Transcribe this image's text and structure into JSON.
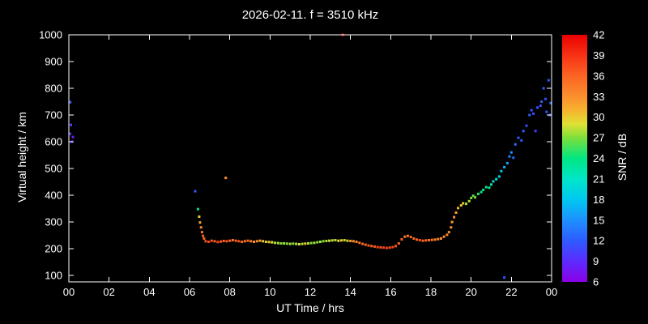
{
  "chart_data": {
    "type": "scatter",
    "title": "2026-02-11. f = 3510 kHz",
    "xlabel": "UT Time / hrs",
    "ylabel": "Virtual height / km",
    "colorbar_label": "SNR / dB",
    "background": "#000000",
    "foreground": "#ffffff",
    "xlim": [
      0,
      24
    ],
    "ylim": [
      76,
      1000
    ],
    "snr_lim": [
      6,
      42
    ],
    "x_ticks": {
      "values": [
        0,
        2,
        4,
        6,
        8,
        10,
        12,
        14,
        16,
        18,
        20,
        22,
        24
      ],
      "labels": [
        "00",
        "02",
        "04",
        "06",
        "08",
        "10",
        "12",
        "14",
        "16",
        "18",
        "20",
        "22",
        "00"
      ]
    },
    "y_ticks": [
      100,
      200,
      300,
      400,
      500,
      600,
      700,
      800,
      900,
      1000
    ],
    "colorbar_ticks": [
      6,
      9,
      12,
      15,
      18,
      21,
      24,
      27,
      30,
      33,
      36,
      39,
      42
    ],
    "colormap_stops": [
      {
        "v": 6,
        "c": "#8a00e6"
      },
      {
        "v": 9,
        "c": "#5c2bff"
      },
      {
        "v": 12,
        "c": "#2e5bff"
      },
      {
        "v": 15,
        "c": "#1e90ff"
      },
      {
        "v": 18,
        "c": "#00c8f0"
      },
      {
        "v": 21,
        "c": "#00e6c8"
      },
      {
        "v": 24,
        "c": "#00e682"
      },
      {
        "v": 27,
        "c": "#7ddf3a"
      },
      {
        "v": 29,
        "c": "#dfe135"
      },
      {
        "v": 31,
        "c": "#f7b32e"
      },
      {
        "v": 33,
        "c": "#fb8f2d"
      },
      {
        "v": 36,
        "c": "#fb6524"
      },
      {
        "v": 39,
        "c": "#f73214"
      },
      {
        "v": 42,
        "c": "#eb0000"
      }
    ],
    "points": [
      [
        0.07,
        748,
        12
      ],
      [
        0.1,
        663,
        10
      ],
      [
        0.06,
        630,
        10
      ],
      [
        0.2,
        618,
        8
      ],
      [
        0.15,
        600,
        9
      ],
      [
        6.28,
        415,
        12
      ],
      [
        6.42,
        348,
        24
      ],
      [
        6.48,
        320,
        30
      ],
      [
        6.52,
        298,
        32
      ],
      [
        6.57,
        280,
        34
      ],
      [
        6.62,
        262,
        35
      ],
      [
        6.67,
        248,
        36
      ],
      [
        6.72,
        238,
        36
      ],
      [
        6.8,
        228,
        37
      ],
      [
        6.95,
        226,
        38
      ],
      [
        7.1,
        230,
        37
      ],
      [
        7.25,
        228,
        36
      ],
      [
        7.4,
        225,
        38
      ],
      [
        7.55,
        227,
        37
      ],
      [
        7.7,
        229,
        36
      ],
      [
        7.85,
        228,
        37
      ],
      [
        8.0,
        230,
        36
      ],
      [
        8.15,
        232,
        35
      ],
      [
        8.3,
        230,
        36
      ],
      [
        8.45,
        228,
        37
      ],
      [
        8.6,
        226,
        36
      ],
      [
        8.75,
        228,
        35
      ],
      [
        8.9,
        230,
        36
      ],
      [
        9.05,
        228,
        34
      ],
      [
        9.2,
        226,
        33
      ],
      [
        9.35,
        228,
        33
      ],
      [
        9.5,
        230,
        32
      ],
      [
        9.65,
        228,
        30
      ],
      [
        9.8,
        226,
        30
      ],
      [
        9.95,
        225,
        30
      ],
      [
        10.1,
        224,
        29
      ],
      [
        10.25,
        222,
        28
      ],
      [
        10.4,
        221,
        28
      ],
      [
        10.55,
        220,
        27
      ],
      [
        10.7,
        220,
        28
      ],
      [
        10.85,
        219,
        27
      ],
      [
        11.0,
        218,
        28
      ],
      [
        11.15,
        219,
        27
      ],
      [
        11.3,
        218,
        28
      ],
      [
        11.45,
        217,
        29
      ],
      [
        11.6,
        218,
        28
      ],
      [
        11.75,
        219,
        30
      ],
      [
        11.9,
        220,
        28
      ],
      [
        12.05,
        221,
        27
      ],
      [
        12.2,
        222,
        28
      ],
      [
        12.35,
        224,
        27
      ],
      [
        12.5,
        226,
        28
      ],
      [
        12.65,
        228,
        27
      ],
      [
        12.8,
        229,
        28
      ],
      [
        12.95,
        230,
        29
      ],
      [
        13.1,
        231,
        28
      ],
      [
        13.25,
        232,
        28
      ],
      [
        13.4,
        230,
        29
      ],
      [
        13.55,
        231,
        30
      ],
      [
        13.7,
        232,
        28
      ],
      [
        13.85,
        230,
        30
      ],
      [
        14.0,
        229,
        32
      ],
      [
        14.15,
        228,
        33
      ],
      [
        14.3,
        226,
        34
      ],
      [
        14.45,
        222,
        35
      ],
      [
        14.6,
        218,
        36
      ],
      [
        14.75,
        215,
        36
      ],
      [
        14.9,
        212,
        37
      ],
      [
        15.05,
        210,
        36
      ],
      [
        15.2,
        208,
        37
      ],
      [
        15.35,
        206,
        38
      ],
      [
        15.5,
        205,
        37
      ],
      [
        15.65,
        204,
        38
      ],
      [
        15.8,
        203,
        38
      ],
      [
        15.95,
        204,
        37
      ],
      [
        16.1,
        206,
        38
      ],
      [
        16.25,
        210,
        37
      ],
      [
        16.4,
        220,
        36
      ],
      [
        16.55,
        235,
        36
      ],
      [
        16.7,
        245,
        35
      ],
      [
        16.85,
        248,
        35
      ],
      [
        17.0,
        244,
        36
      ],
      [
        17.15,
        238,
        36
      ],
      [
        17.3,
        234,
        36
      ],
      [
        17.45,
        232,
        37
      ],
      [
        17.6,
        230,
        36
      ],
      [
        17.75,
        231,
        36
      ],
      [
        17.9,
        232,
        35
      ],
      [
        18.05,
        233,
        35
      ],
      [
        18.2,
        234,
        34
      ],
      [
        18.35,
        236,
        34
      ],
      [
        18.5,
        238,
        33
      ],
      [
        18.65,
        245,
        33
      ],
      [
        18.8,
        252,
        34
      ],
      [
        18.9,
        262,
        33
      ],
      [
        19.0,
        280,
        33
      ],
      [
        19.05,
        300,
        32
      ],
      [
        19.15,
        318,
        33
      ],
      [
        19.25,
        335,
        32
      ],
      [
        19.35,
        352,
        31
      ],
      [
        19.5,
        362,
        30
      ],
      [
        19.6,
        370,
        30
      ],
      [
        19.75,
        368,
        28
      ],
      [
        19.9,
        378,
        28
      ],
      [
        20.0,
        390,
        27
      ],
      [
        20.1,
        398,
        26
      ],
      [
        20.2,
        392,
        27
      ],
      [
        20.35,
        405,
        25
      ],
      [
        20.5,
        412,
        24
      ],
      [
        20.6,
        420,
        24
      ],
      [
        20.75,
        430,
        23
      ],
      [
        20.9,
        428,
        24
      ],
      [
        21.0,
        440,
        22
      ],
      [
        21.1,
        452,
        21
      ],
      [
        21.25,
        460,
        20
      ],
      [
        21.4,
        470,
        19
      ],
      [
        21.5,
        490,
        18
      ],
      [
        21.65,
        505,
        17
      ],
      [
        21.8,
        520,
        16
      ],
      [
        21.9,
        545,
        14
      ],
      [
        22.0,
        560,
        15
      ],
      [
        22.1,
        540,
        13
      ],
      [
        22.2,
        590,
        13
      ],
      [
        22.35,
        615,
        12
      ],
      [
        22.5,
        605,
        12
      ],
      [
        22.6,
        640,
        12
      ],
      [
        22.75,
        660,
        11
      ],
      [
        22.9,
        700,
        12
      ],
      [
        23.0,
        718,
        12
      ],
      [
        23.1,
        705,
        11
      ],
      [
        23.2,
        640,
        10
      ],
      [
        23.3,
        728,
        12
      ],
      [
        23.45,
        735,
        11
      ],
      [
        23.5,
        750,
        12
      ],
      [
        23.6,
        800,
        12
      ],
      [
        23.7,
        760,
        11
      ],
      [
        23.75,
        712,
        12
      ],
      [
        23.85,
        830,
        12
      ],
      [
        23.9,
        700,
        12
      ],
      [
        23.95,
        745,
        13
      ],
      [
        7.8,
        465,
        33
      ],
      [
        13.62,
        1000,
        40
      ],
      [
        21.65,
        92,
        12
      ]
    ]
  }
}
